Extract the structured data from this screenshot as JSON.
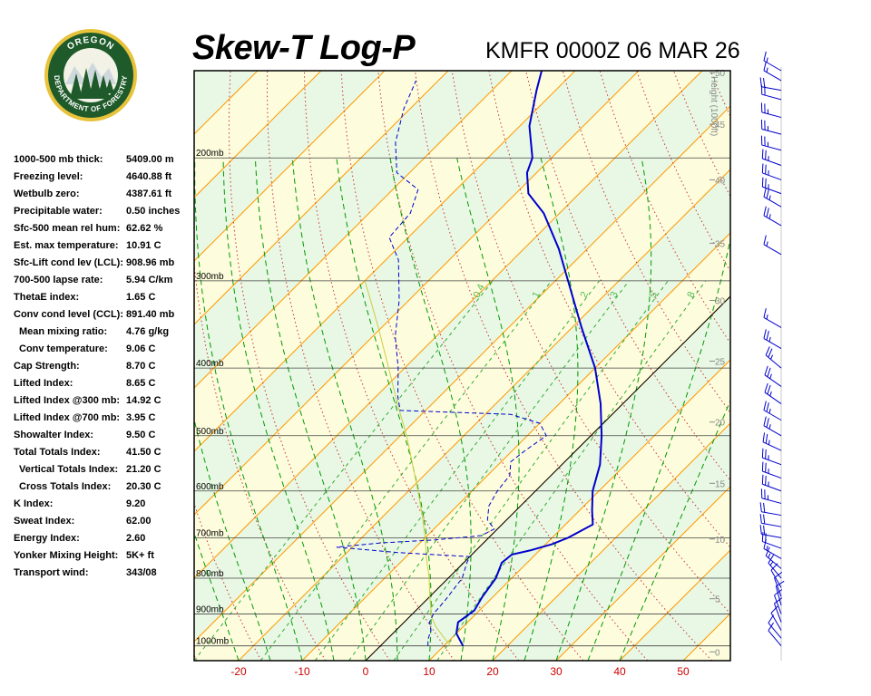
{
  "header": {
    "title": "Skew-T Log-P",
    "station": "KMFR 0000Z 06 MAR 26"
  },
  "logo": {
    "top_text": "OREGON",
    "bottom_text": "DEPARTMENT OF FORESTRY"
  },
  "colors": {
    "temperature": "#0000cc",
    "dewpoint": "#0000cc",
    "parcel": "#cccc44",
    "isotherm": "#ff9900",
    "dry_adiabat": "#cc3333",
    "moist_adiabat": "#009900",
    "mixing_ratio": "#33aa33",
    "isobar": "#000000",
    "wind_barbs": "#0000cc",
    "band_yellow": "#fdfddd",
    "band_green": "#e8f8e4"
  },
  "stats": [
    {
      "label": "1000-500 mb thick:",
      "value": "5409.00 m"
    },
    {
      "label": "Freezing level:",
      "value": "4640.88 ft"
    },
    {
      "label": "Wetbulb zero:",
      "value": "4387.61 ft"
    },
    {
      "label": "Precipitable water:",
      "value": "0.50 inches"
    },
    {
      "label": "Sfc-500 mean rel hum:",
      "value": "62.62 %"
    },
    {
      "label": "Est. max temperature:",
      "value": "10.91 C"
    },
    {
      "label": "Sfc-Lift cond lev (LCL):",
      "value": "908.96 mb"
    },
    {
      "label": "700-500 lapse rate:",
      "value": "5.94 C/km"
    },
    {
      "label": "ThetaE index:",
      "value": "1.65 C"
    },
    {
      "label": "Conv cond level (CCL):",
      "value": "891.40 mb"
    },
    {
      "label": "Mean mixing ratio:",
      "value": "4.76 g/kg",
      "indent": true
    },
    {
      "label": "Conv temperature:",
      "value": "9.06 C",
      "indent": true
    },
    {
      "label": "Cap Strength:",
      "value": "8.70 C"
    },
    {
      "label": "Lifted Index:",
      "value": "8.65 C"
    },
    {
      "label": "Lifted Index @300 mb:",
      "value": "14.92 C"
    },
    {
      "label": "Lifted Index @700 mb:",
      "value": "3.95 C"
    },
    {
      "label": "Showalter Index:",
      "value": "9.50 C"
    },
    {
      "label": "Total Totals Index:",
      "value": "41.50 C"
    },
    {
      "label": "Vertical Totals Index:",
      "value": "21.20 C",
      "indent": true
    },
    {
      "label": "Cross Totals Index:",
      "value": "20.30 C",
      "indent": true
    },
    {
      "label": "K Index:",
      "value": "9.20"
    },
    {
      "label": "Sweat Index:",
      "value": "62.00"
    },
    {
      "label": "Energy Index:",
      "value": "2.60"
    },
    {
      "label": "Yonker Mixing Height:",
      "value": "5K+ ft"
    },
    {
      "label": "Transport wind:",
      "value": "343/08"
    }
  ],
  "chart_data": {
    "type": "skew-t log-p",
    "x_ticks": [
      -20,
      -10,
      0,
      10,
      20,
      30,
      40,
      50
    ],
    "xlim": [
      -29,
      56
    ],
    "pressure_range_mb": [
      1050,
      150
    ],
    "isobars": [
      {
        "p": 200,
        "label": "200mb"
      },
      {
        "p": 300,
        "label": "300mb"
      },
      {
        "p": 400,
        "label": "400mb"
      },
      {
        "p": 500,
        "label": "500mb"
      },
      {
        "p": 600,
        "label": "600mb"
      },
      {
        "p": 700,
        "label": "700mb"
      },
      {
        "p": 800,
        "label": "800mb"
      },
      {
        "p": 900,
        "label": "900mb"
      },
      {
        "p": 1000,
        "label": "1000mb"
      }
    ],
    "height_axis_title": "Height (1000ft)",
    "height_ticks": [
      {
        "label": "0",
        "p": 1020
      },
      {
        "label": "5",
        "p": 856
      },
      {
        "label": "10",
        "p": 703
      },
      {
        "label": "15",
        "p": 585
      },
      {
        "label": "20",
        "p": 478
      },
      {
        "label": "25",
        "p": 391
      },
      {
        "label": "30",
        "p": 320
      },
      {
        "label": "35",
        "p": 265
      },
      {
        "label": "40",
        "p": 215
      },
      {
        "label": "45",
        "p": 179
      },
      {
        "label": "50",
        "p": 151
      }
    ],
    "mixing_ratio_labels": [
      "0.4",
      "1",
      "2",
      "3",
      "5",
      "8"
    ],
    "mixing_ratio_values": [
      0.4,
      1,
      2,
      3,
      5,
      8
    ],
    "temperature": [
      {
        "p": 1000,
        "t": 13.0
      },
      {
        "p": 960,
        "t": 10.0
      },
      {
        "p": 925,
        "t": 8.5
      },
      {
        "p": 890,
        "t": 9.2
      },
      {
        "p": 850,
        "t": 8.3
      },
      {
        "p": 800,
        "t": 7.5
      },
      {
        "p": 760,
        "t": 6.0
      },
      {
        "p": 740,
        "t": 6.3
      },
      {
        "p": 730,
        "t": 8.5
      },
      {
        "p": 715,
        "t": 11.0
      },
      {
        "p": 700,
        "t": 12.5
      },
      {
        "p": 670,
        "t": 14.3
      },
      {
        "p": 640,
        "t": 12.0
      },
      {
        "p": 600,
        "t": 9.0
      },
      {
        "p": 550,
        "t": 6.0
      },
      {
        "p": 500,
        "t": 1.7
      },
      {
        "p": 450,
        "t": -3.5
      },
      {
        "p": 400,
        "t": -10.0
      },
      {
        "p": 350,
        "t": -18.5
      },
      {
        "p": 300,
        "t": -28.0
      },
      {
        "p": 270,
        "t": -34.5
      },
      {
        "p": 240,
        "t": -42.5
      },
      {
        "p": 225,
        "t": -48.0
      },
      {
        "p": 210,
        "t": -51.5
      },
      {
        "p": 200,
        "t": -53.0
      },
      {
        "p": 180,
        "t": -58.5
      },
      {
        "p": 160,
        "t": -63.0
      },
      {
        "p": 147,
        "t": -66.0
      }
    ],
    "dewpoint": [
      {
        "p": 1000,
        "t": 7.5
      },
      {
        "p": 980,
        "t": 6.5
      },
      {
        "p": 950,
        "t": 5.5
      },
      {
        "p": 925,
        "t": 4.0
      },
      {
        "p": 900,
        "t": 3.3
      },
      {
        "p": 860,
        "t": 3.0
      },
      {
        "p": 800,
        "t": 2.2
      },
      {
        "p": 760,
        "t": 0.5
      },
      {
        "p": 745,
        "t": 0.0
      },
      {
        "p": 735,
        "t": -12.0
      },
      {
        "p": 722,
        "t": -22.5
      },
      {
        "p": 712,
        "t": -16.0
      },
      {
        "p": 705,
        "t": -8.0
      },
      {
        "p": 695,
        "t": -1.5
      },
      {
        "p": 680,
        "t": -0.5
      },
      {
        "p": 660,
        "t": -3.0
      },
      {
        "p": 630,
        "t": -5.0
      },
      {
        "p": 600,
        "t": -6.0
      },
      {
        "p": 570,
        "t": -6.5
      },
      {
        "p": 545,
        "t": -8.5
      },
      {
        "p": 525,
        "t": -8.0
      },
      {
        "p": 500,
        "t": -7.0
      },
      {
        "p": 480,
        "t": -10.0
      },
      {
        "p": 466,
        "t": -16.0
      },
      {
        "p": 460,
        "t": -34.0
      },
      {
        "p": 440,
        "t": -36.5
      },
      {
        "p": 400,
        "t": -41.0
      },
      {
        "p": 360,
        "t": -46.5
      },
      {
        "p": 320,
        "t": -51.5
      },
      {
        "p": 280,
        "t": -58.0
      },
      {
        "p": 260,
        "t": -63.0
      },
      {
        "p": 240,
        "t": -63.5
      },
      {
        "p": 222,
        "t": -66.0
      },
      {
        "p": 210,
        "t": -72.0
      },
      {
        "p": 190,
        "t": -77.0
      },
      {
        "p": 170,
        "t": -81.0
      },
      {
        "p": 155,
        "t": -83.5
      }
    ],
    "parcel": [
      {
        "p": 1000,
        "t": 11.0
      },
      {
        "p": 940,
        "t": 5.8
      },
      {
        "p": 909,
        "t": 3.5
      },
      {
        "p": 850,
        "t": 0.0
      },
      {
        "p": 800,
        "t": -3.0
      },
      {
        "p": 750,
        "t": -6.5
      },
      {
        "p": 700,
        "t": -10.0
      },
      {
        "p": 650,
        "t": -14.0
      },
      {
        "p": 600,
        "t": -18.5
      },
      {
        "p": 550,
        "t": -23.5
      },
      {
        "p": 500,
        "t": -29.0
      },
      {
        "p": 450,
        "t": -35.5
      },
      {
        "p": 400,
        "t": -42.5
      },
      {
        "p": 350,
        "t": -50.5
      },
      {
        "p": 320,
        "t": -56.0
      },
      {
        "p": 300,
        "t": -60.0
      }
    ],
    "wind_barbs": [
      {
        "p": 1000,
        "dir": 320,
        "spd": 10
      },
      {
        "p": 975,
        "dir": 320,
        "spd": 10
      },
      {
        "p": 950,
        "dir": 330,
        "spd": 10
      },
      {
        "p": 925,
        "dir": 340,
        "spd": 10
      },
      {
        "p": 900,
        "dir": 340,
        "spd": 10
      },
      {
        "p": 875,
        "dir": 345,
        "spd": 10
      },
      {
        "p": 850,
        "dir": 340,
        "spd": 10
      },
      {
        "p": 825,
        "dir": 330,
        "spd": 10
      },
      {
        "p": 800,
        "dir": 320,
        "spd": 15
      },
      {
        "p": 775,
        "dir": 310,
        "spd": 15
      },
      {
        "p": 750,
        "dir": 300,
        "spd": 15
      },
      {
        "p": 725,
        "dir": 290,
        "spd": 20
      },
      {
        "p": 700,
        "dir": 280,
        "spd": 20
      },
      {
        "p": 675,
        "dir": 280,
        "spd": 20
      },
      {
        "p": 650,
        "dir": 280,
        "spd": 20
      },
      {
        "p": 625,
        "dir": 285,
        "spd": 25
      },
      {
        "p": 600,
        "dir": 290,
        "spd": 25
      },
      {
        "p": 575,
        "dir": 290,
        "spd": 25
      },
      {
        "p": 550,
        "dir": 290,
        "spd": 25
      },
      {
        "p": 525,
        "dir": 295,
        "spd": 25
      },
      {
        "p": 500,
        "dir": 300,
        "spd": 25
      },
      {
        "p": 475,
        "dir": 300,
        "spd": 25
      },
      {
        "p": 450,
        "dir": 305,
        "spd": 25
      },
      {
        "p": 425,
        "dir": 305,
        "spd": 25
      },
      {
        "p": 400,
        "dir": 310,
        "spd": 25
      },
      {
        "p": 375,
        "dir": 300,
        "spd": 25
      },
      {
        "p": 350,
        "dir": 300,
        "spd": 15
      },
      {
        "p": 275,
        "dir": 300,
        "spd": 15
      },
      {
        "p": 250,
        "dir": 300,
        "spd": 25
      },
      {
        "p": 235,
        "dir": 300,
        "spd": 25
      },
      {
        "p": 225,
        "dir": 290,
        "spd": 25
      },
      {
        "p": 215,
        "dir": 290,
        "spd": 25
      },
      {
        "p": 205,
        "dir": 290,
        "spd": 25
      },
      {
        "p": 195,
        "dir": 285,
        "spd": 25
      },
      {
        "p": 185,
        "dir": 285,
        "spd": 25
      },
      {
        "p": 175,
        "dir": 285,
        "spd": 25
      },
      {
        "p": 165,
        "dir": 285,
        "spd": 20
      },
      {
        "p": 160,
        "dir": 280,
        "spd": 20
      },
      {
        "p": 155,
        "dir": 300,
        "spd": 15
      },
      {
        "p": 150,
        "dir": 300,
        "spd": 15
      }
    ]
  }
}
